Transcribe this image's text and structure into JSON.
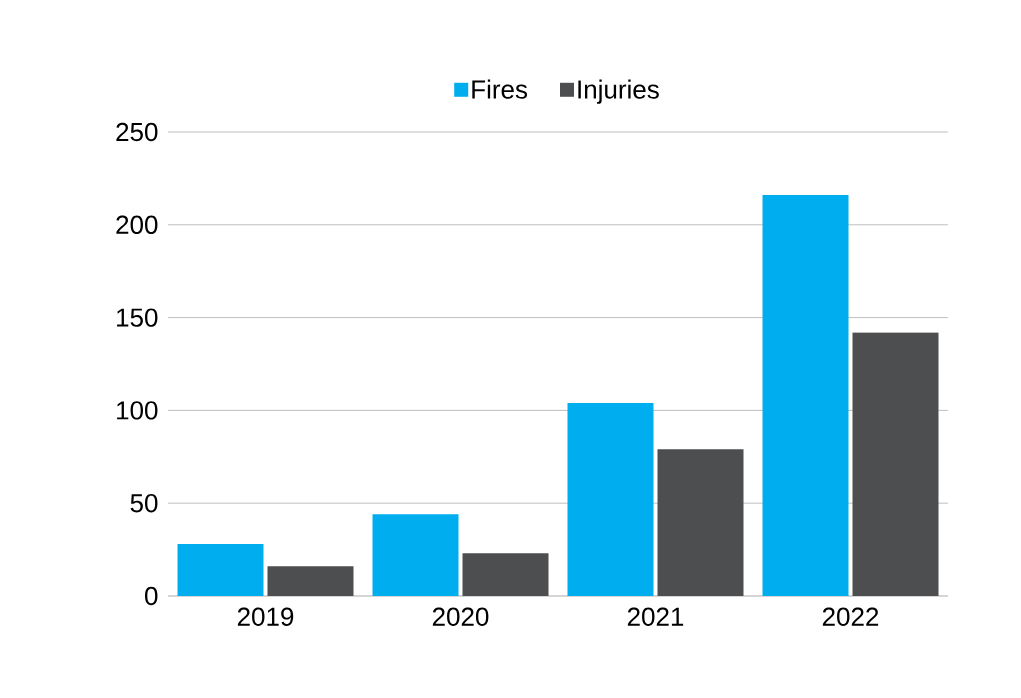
{
  "chart_data": {
    "type": "bar",
    "categories": [
      "2019",
      "2020",
      "2021",
      "2022"
    ],
    "series": [
      {
        "name": "Fires",
        "color": "#00aeef",
        "values": [
          28,
          44,
          104,
          216
        ]
      },
      {
        "name": "Injuries",
        "color": "#4d4e50",
        "values": [
          16,
          23,
          79,
          142
        ]
      }
    ],
    "ylim": [
      0,
      250
    ],
    "yticks": [
      0,
      50,
      100,
      150,
      200,
      250
    ],
    "grid": "y",
    "legend": "top"
  }
}
